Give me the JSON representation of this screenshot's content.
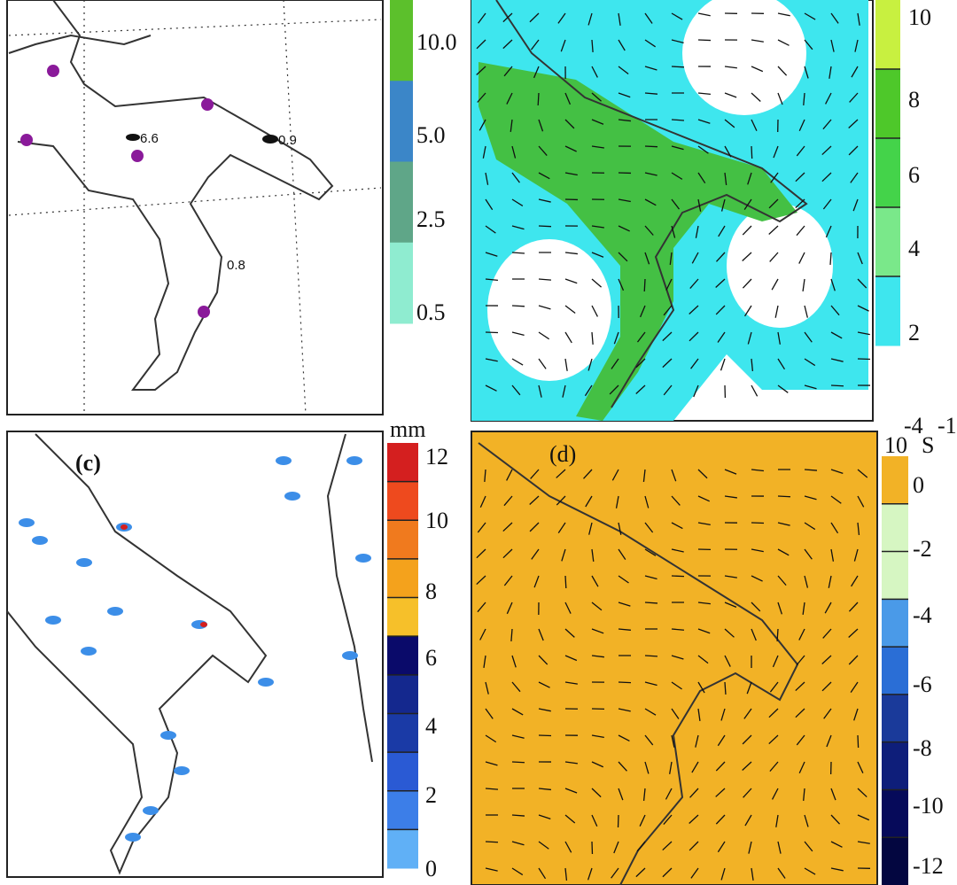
{
  "panels": [
    {
      "station_labels": [
        "6.6",
        "0.9",
        "0.8"
      ],
      "colorbar": {
        "labels": [
          "10.0",
          "5.0",
          "2.5",
          "0.5"
        ],
        "colors": [
          "#5cc02c",
          "#3b86c8",
          "#5fa688",
          "#8fecd0"
        ]
      }
    },
    {
      "colorbar": {
        "labels": [
          "10",
          "8",
          "6",
          "4",
          "2"
        ],
        "colors": [
          "#c8f040",
          "#4ec82a",
          "#44d34a",
          "#7ae88a",
          "#3ee6ee"
        ]
      }
    },
    {
      "label": "(c)",
      "unit": "mm",
      "colorbar": {
        "labels": [
          "12",
          "10",
          "8",
          "6",
          "4",
          "2",
          "0"
        ],
        "colors": [
          "#d41f1f",
          "#ee4a1e",
          "#f07a1e",
          "#f4a21c",
          "#f6c02a",
          "#0a0a6a",
          "#14288e",
          "#1a3aa6",
          "#2a5ad4",
          "#3c7ee8",
          "#60b0f6"
        ]
      }
    },
    {
      "label": "(d)",
      "unit_base": "10",
      "unit_exp": "-4",
      "unit_s": "S",
      "unit_s_exp": "-1",
      "colorbar": {
        "labels": [
          "0",
          "-2",
          "-4",
          "-6",
          "-8",
          "-10",
          "-12"
        ],
        "colors": [
          "#f2b226",
          "#d6f6c2",
          "#d6f6c2",
          "#4a9ae8",
          "#2a6ed6",
          "#1a3a9a",
          "#0e1e7a",
          "#060a5a",
          "#030640"
        ]
      }
    }
  ]
}
